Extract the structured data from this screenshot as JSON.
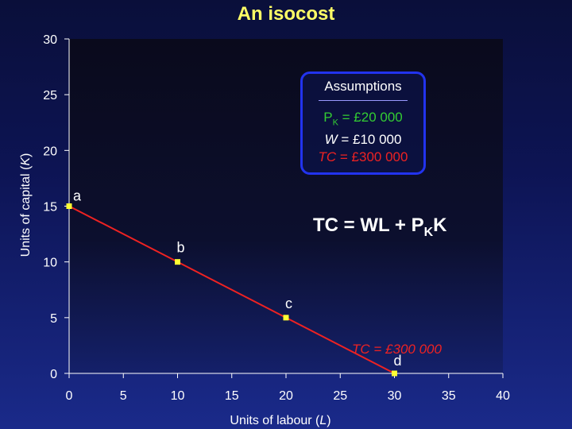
{
  "chart_data": {
    "type": "line",
    "title": "An isocost",
    "xlabel": "Units of labour (L)",
    "ylabel": "Units of capital (K)",
    "xlim": [
      0,
      40
    ],
    "ylim": [
      0,
      30
    ],
    "xticks": [
      0,
      5,
      10,
      15,
      20,
      25,
      30,
      35,
      40
    ],
    "yticks": [
      0,
      5,
      10,
      15,
      20,
      25,
      30
    ],
    "grid": false,
    "series": [
      {
        "points": [
          {
            "x": 0,
            "y": 15,
            "label": "a"
          },
          {
            "x": 10,
            "y": 10,
            "label": "b"
          },
          {
            "x": 20,
            "y": 5,
            "label": "c"
          },
          {
            "x": 30,
            "y": 0,
            "label": "d"
          }
        ],
        "color": "#ee2222",
        "marker_color": "#ffff33"
      }
    ],
    "annotations": {
      "formula": "TC = WL + PKK",
      "line_label": "TC = £300 000"
    },
    "assumptions": {
      "heading": "Assumptions",
      "pk": "PK = £20 000",
      "w": "W = £10 000",
      "tc": "TC = £300 000"
    }
  },
  "colors": {
    "title": "#ffff66",
    "plot_bg": "#0b0b1e",
    "line": "#ee2222",
    "marker": "#ffff33",
    "box_border": "#2233ee",
    "pk_text": "#33cc33",
    "tc_text": "#ee2222"
  }
}
